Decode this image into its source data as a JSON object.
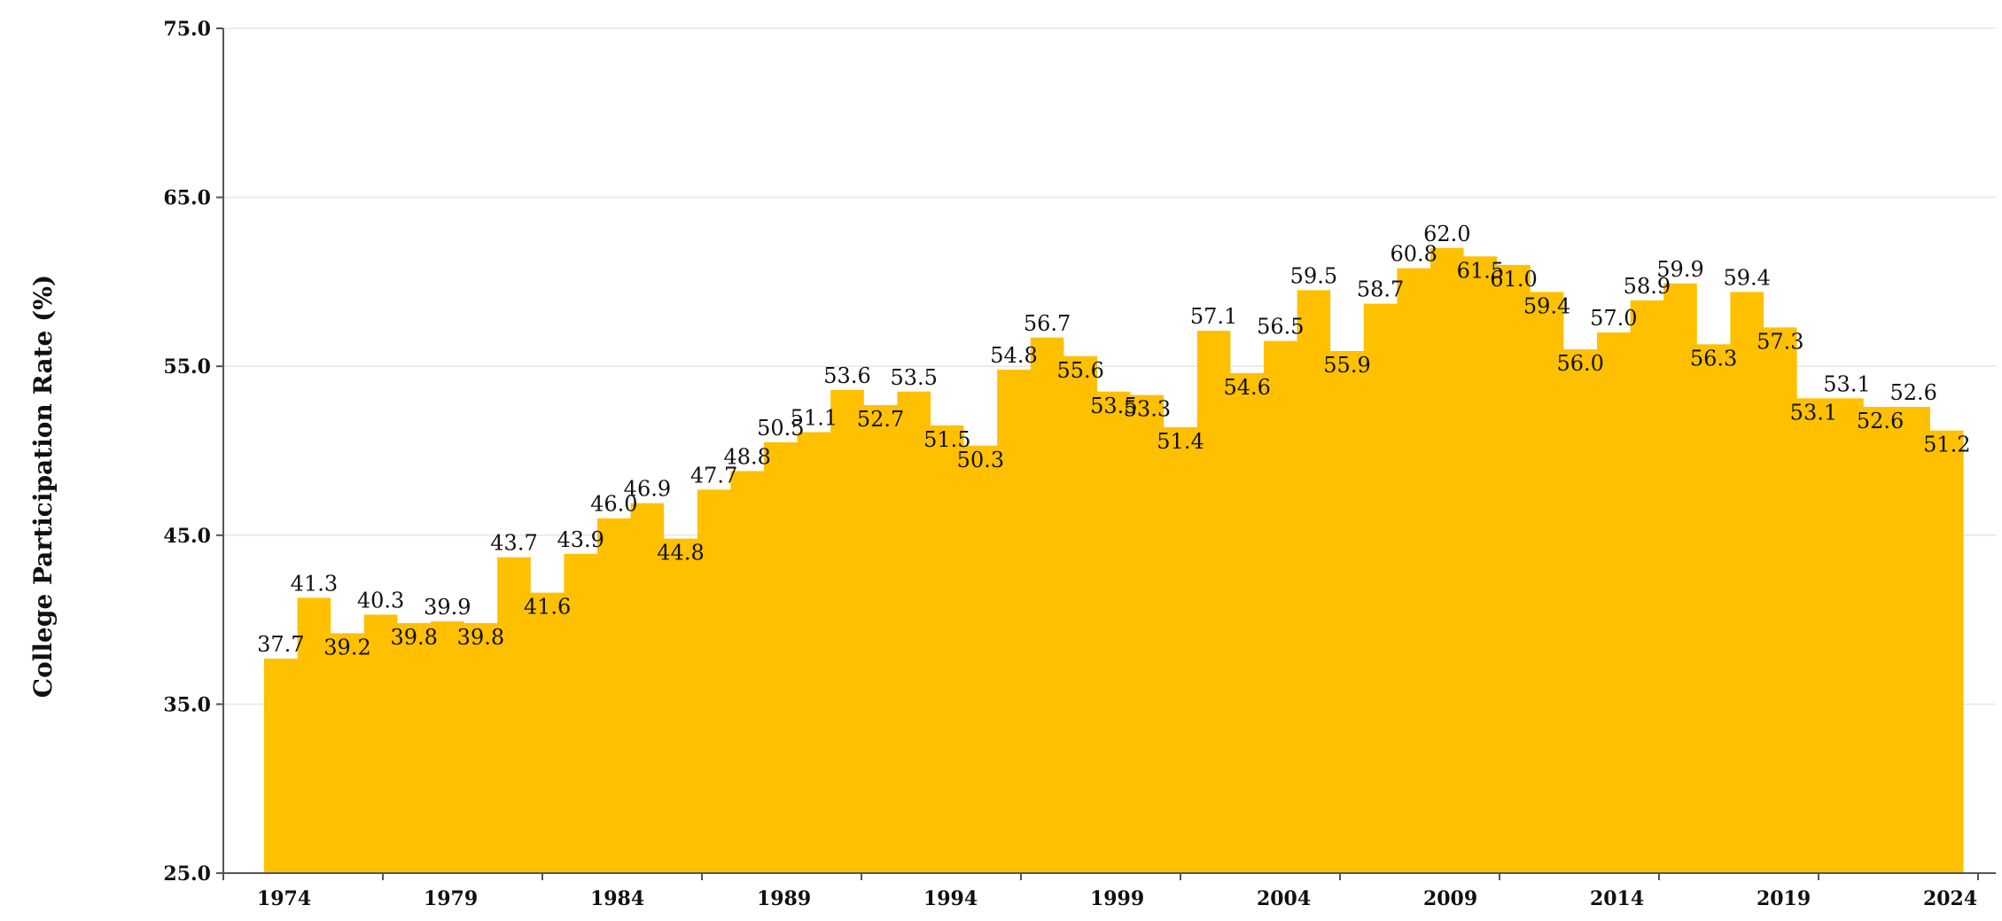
{
  "colors": {
    "area_fill": "#FFC000",
    "grid": "#e6e6e6",
    "axis": "#555555",
    "background": "#ffffff"
  },
  "chart_data": {
    "type": "area",
    "step": true,
    "title": "",
    "xlabel": "",
    "ylabel": "College Participation Rate (%)",
    "ylim": [
      25.0,
      75.0
    ],
    "yticks": [
      "25.0",
      "35.0",
      "45.0",
      "55.0",
      "65.0",
      "75.0"
    ],
    "xticks": [
      "1974",
      "1979",
      "1984",
      "1989",
      "1994",
      "1999",
      "2004",
      "2009",
      "2014",
      "2019",
      "2024"
    ],
    "grid": true,
    "x": [
      1974,
      1975,
      1976,
      1977,
      1978,
      1979,
      1980,
      1981,
      1982,
      1983,
      1984,
      1985,
      1986,
      1987,
      1988,
      1989,
      1990,
      1991,
      1992,
      1993,
      1994,
      1995,
      1996,
      1997,
      1998,
      1999,
      2000,
      2001,
      2002,
      2003,
      2004,
      2005,
      2006,
      2007,
      2008,
      2009,
      2010,
      2011,
      2012,
      2013,
      2014,
      2015,
      2016,
      2017,
      2018,
      2019,
      2020,
      2021,
      2022,
      2023,
      2024
    ],
    "series": [
      {
        "values": [
          37.7,
          41.3,
          39.2,
          40.3,
          39.8,
          39.9,
          39.8,
          43.7,
          41.6,
          43.9,
          46.0,
          46.9,
          44.8,
          47.7,
          48.8,
          50.5,
          51.1,
          53.6,
          52.7,
          53.5,
          51.5,
          50.3,
          54.8,
          56.7,
          55.6,
          53.5,
          53.3,
          51.4,
          57.1,
          54.6,
          56.5,
          59.5,
          55.9,
          58.7,
          60.8,
          62.0,
          61.5,
          61.0,
          59.4,
          56.0,
          57.0,
          58.9,
          59.9,
          56.3,
          59.4,
          57.3,
          53.1,
          53.1,
          52.6,
          52.6,
          51.2
        ]
      }
    ]
  }
}
